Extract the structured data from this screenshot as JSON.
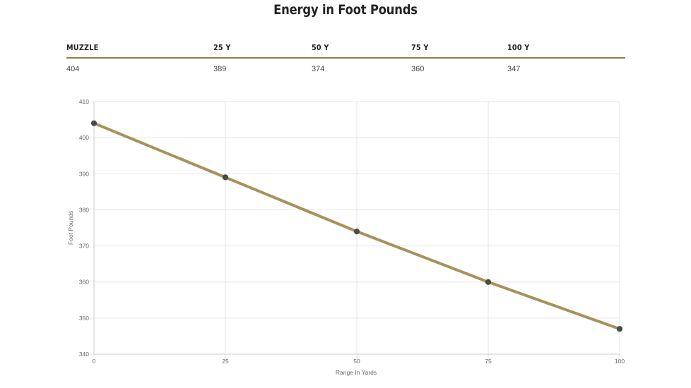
{
  "page": {
    "title": "Energy in Foot Pounds"
  },
  "table": {
    "headers": [
      "MUZZLE",
      "25 Y",
      "50 Y",
      "75 Y",
      "100 Y"
    ],
    "values": [
      "404",
      "389",
      "374",
      "360",
      "347"
    ]
  },
  "chart_data": {
    "type": "line",
    "title": "",
    "xlabel": "Range In Yards",
    "ylabel": "Foot Pounds",
    "x": [
      0,
      25,
      50,
      75,
      100
    ],
    "series": [
      {
        "name": "Energy",
        "values": [
          404,
          389,
          374,
          360,
          347
        ]
      }
    ],
    "xlim": [
      0,
      100
    ],
    "ylim": [
      340,
      410
    ],
    "xticks": [
      0,
      25,
      50,
      75,
      100
    ],
    "yticks": [
      340,
      350,
      360,
      370,
      380,
      390,
      400,
      410
    ],
    "grid": true,
    "legend": "none",
    "colors": {
      "line": "#a8915a",
      "point": "#4a4a42",
      "grid": "#e6e6e6",
      "axis": "#cccccc",
      "tick_text": "#666666"
    }
  }
}
